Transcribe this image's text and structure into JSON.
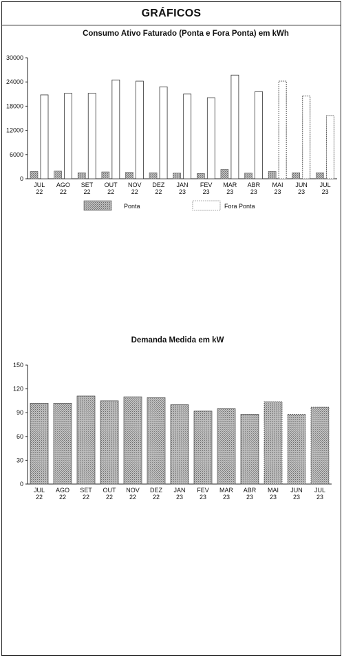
{
  "header": {
    "title": "GRÁFICOS"
  },
  "chart_data": [
    {
      "type": "bar",
      "title": "Consumo Ativo Faturado (Ponta e Fora Ponta) em kWh",
      "categories": [
        [
          "JUL",
          "22"
        ],
        [
          "AGO",
          "22"
        ],
        [
          "SET",
          "22"
        ],
        [
          "OUT",
          "22"
        ],
        [
          "NOV",
          "22"
        ],
        [
          "DEZ",
          "22"
        ],
        [
          "JAN",
          "23"
        ],
        [
          "FEV",
          "23"
        ],
        [
          "MAR",
          "23"
        ],
        [
          "ABR",
          "23"
        ],
        [
          "MAI",
          "23"
        ],
        [
          "JUN",
          "23"
        ],
        [
          "JUL",
          "23"
        ]
      ],
      "ylim": [
        0,
        30000
      ],
      "yticks": [
        0,
        6000,
        12000,
        18000,
        24000,
        30000
      ],
      "legend_position": "bottom",
      "series": [
        {
          "name": "Ponta",
          "color": "#9a9a9a",
          "values": [
            1800,
            1900,
            1500,
            1700,
            1600,
            1500,
            1400,
            1300,
            2300,
            1400,
            1800,
            1500,
            1500
          ]
        },
        {
          "name": "Fora Ponta",
          "color": "#ffffff",
          "values": [
            20800,
            21200,
            21200,
            24500,
            24200,
            22800,
            21000,
            20100,
            25700,
            21600,
            24200,
            20500,
            15600
          ]
        }
      ]
    },
    {
      "type": "bar",
      "title": "Demanda Medida em kW",
      "categories": [
        [
          "JUL",
          "22"
        ],
        [
          "AGO",
          "22"
        ],
        [
          "SET",
          "22"
        ],
        [
          "OUT",
          "22"
        ],
        [
          "NOV",
          "22"
        ],
        [
          "DEZ",
          "22"
        ],
        [
          "JAN",
          "23"
        ],
        [
          "FEV",
          "23"
        ],
        [
          "MAR",
          "23"
        ],
        [
          "ABR",
          "23"
        ],
        [
          "MAI",
          "23"
        ],
        [
          "JUN",
          "23"
        ],
        [
          "JUL",
          "23"
        ]
      ],
      "ylim": [
        0,
        150
      ],
      "yticks": [
        0,
        30,
        60,
        90,
        120,
        150
      ],
      "series": [
        {
          "name": "",
          "color": "#a8a8a8",
          "values": [
            102,
            102,
            111,
            105,
            110,
            109,
            100,
            92,
            95,
            88,
            104,
            88,
            97
          ]
        }
      ]
    }
  ]
}
